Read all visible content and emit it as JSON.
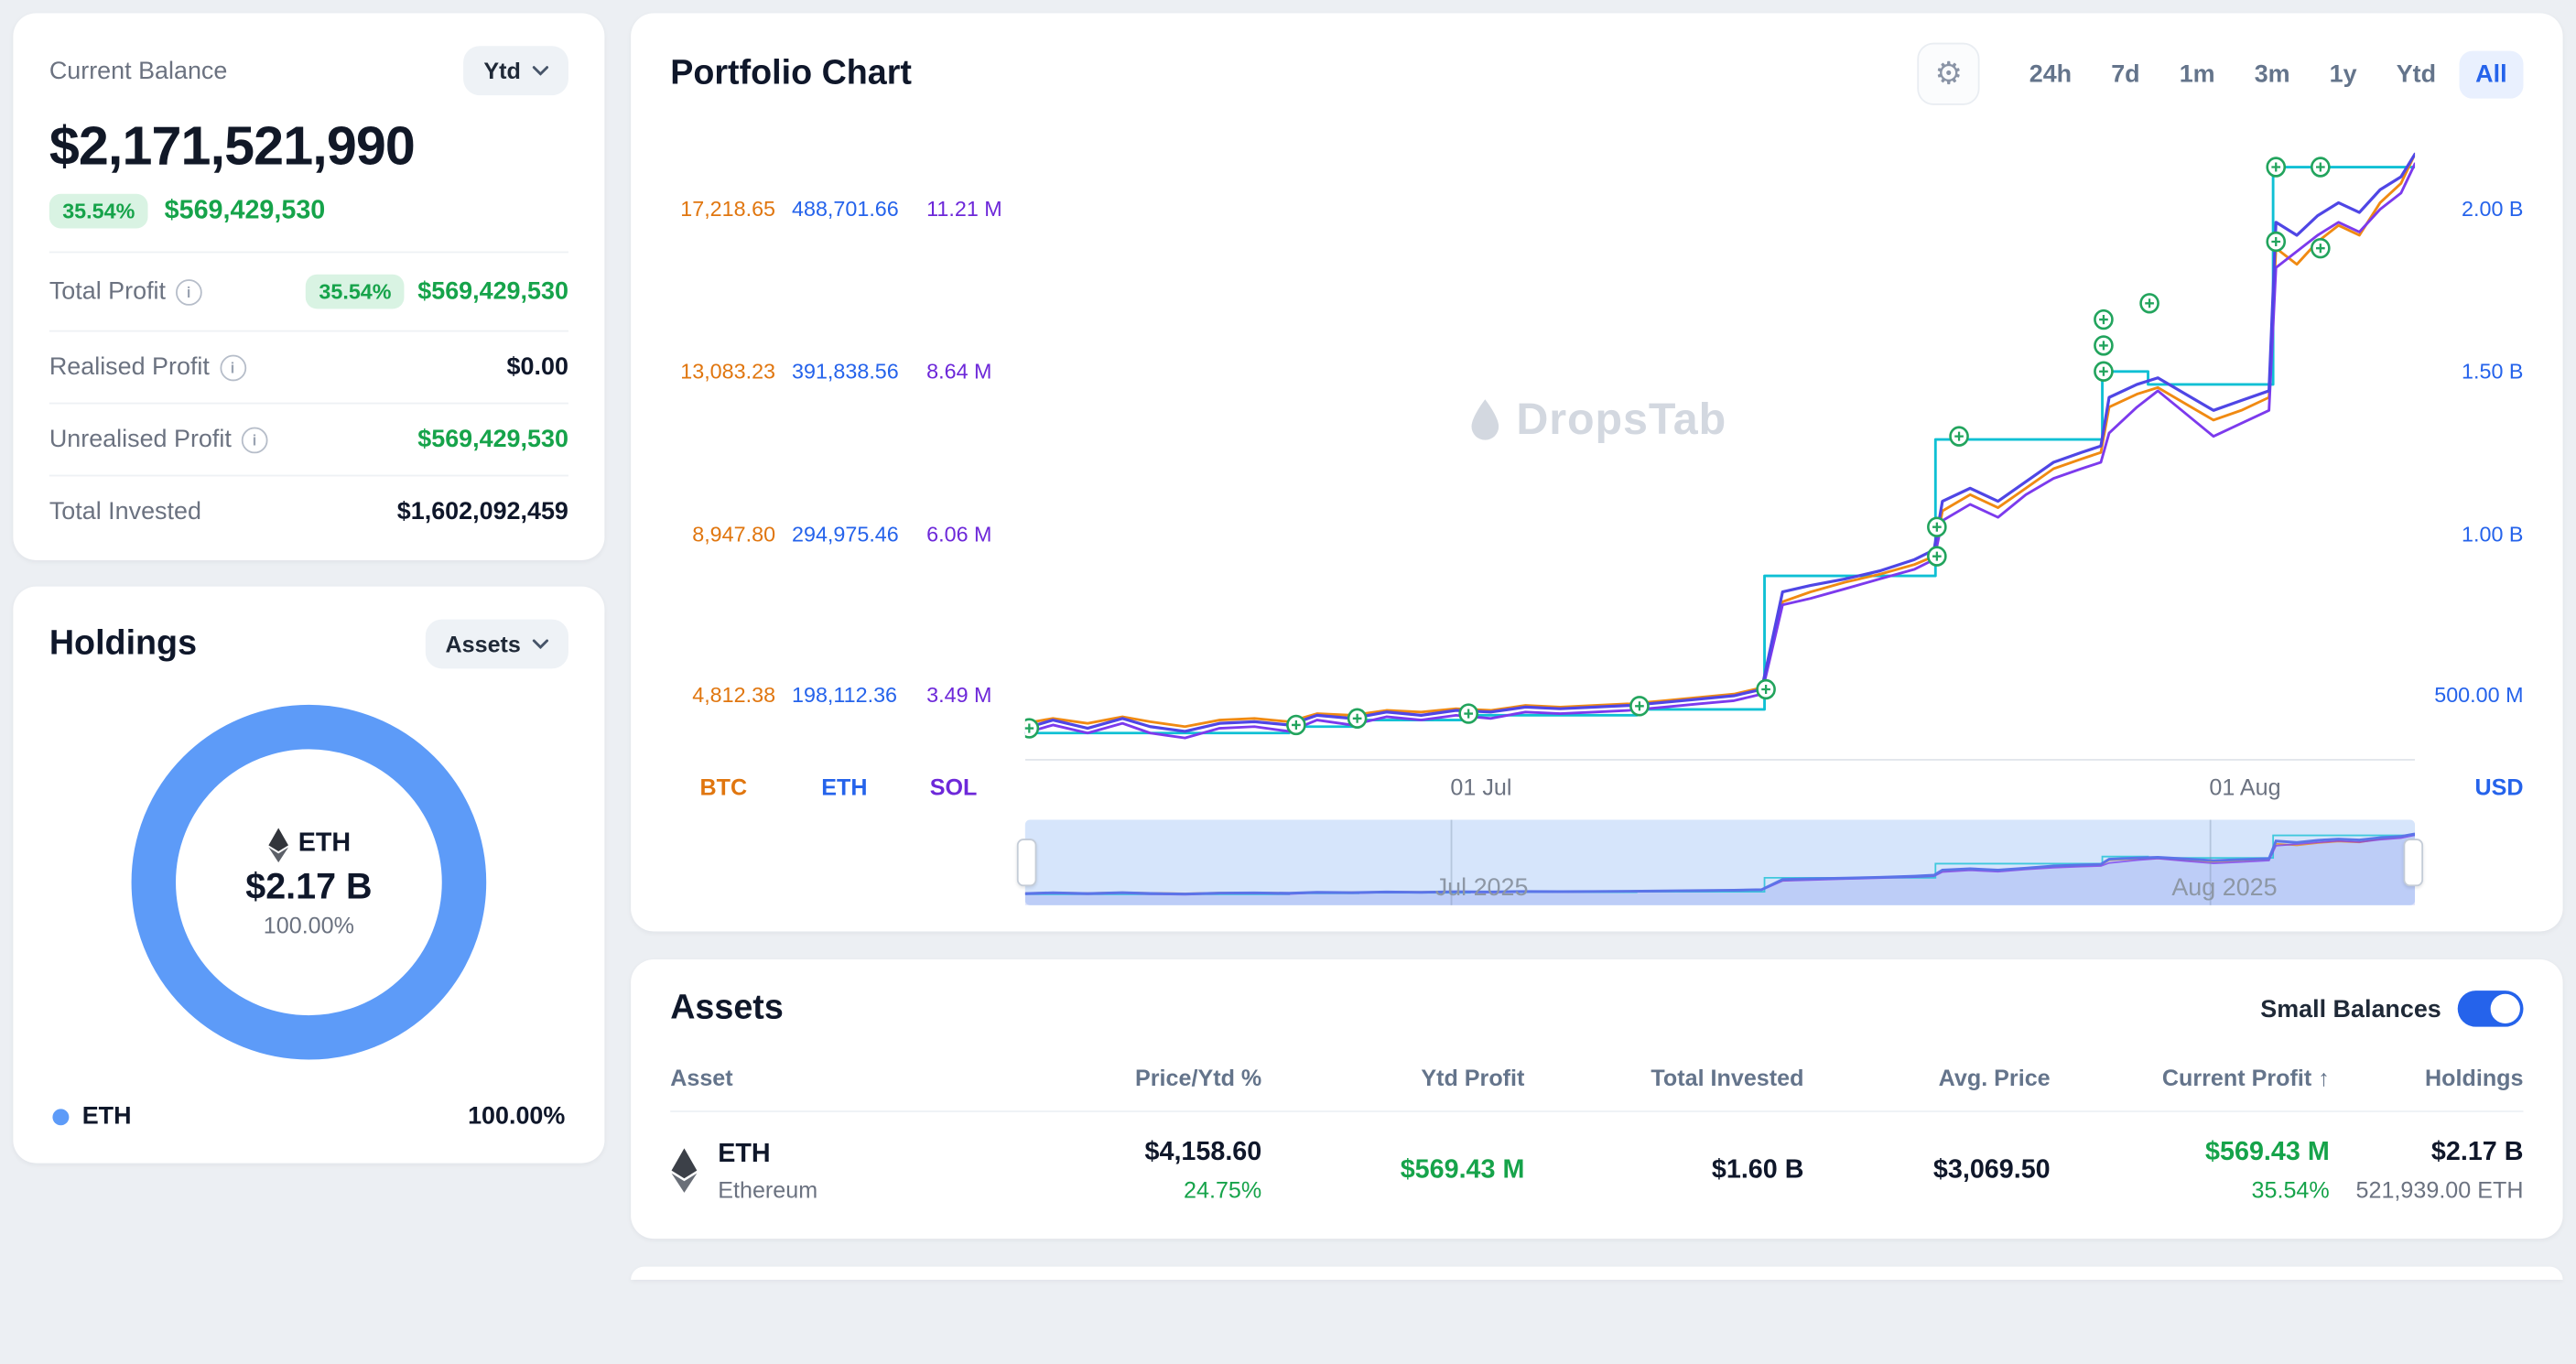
{
  "colors": {
    "accent_blue": "#2563eb",
    "donut_blue": "#5d9bf8",
    "positive_green": "#16a34a",
    "btc_orange": "#e0760f",
    "sol_purple": "#6d28d9",
    "eth_cyan": "#0fc0d4",
    "portfolio_indigo": "#4f46e5"
  },
  "balance_card": {
    "title": "Current Balance",
    "period_selector": "Ytd",
    "balance": "$2,171,521,990",
    "change_percent": "35.54%",
    "change_value": "$569,429,530",
    "rows": [
      {
        "label": "Total Profit",
        "badge": "35.54%",
        "value": "$569,429,530"
      },
      {
        "label": "Realised Profit",
        "value": "$0.00"
      },
      {
        "label": "Unrealised Profit",
        "value": "$569,429,530"
      },
      {
        "label": "Total Invested",
        "value": "$1,602,092,459"
      }
    ]
  },
  "holdings_card": {
    "title": "Holdings",
    "selector": "Assets",
    "center": {
      "symbol": "ETH",
      "value": "$2.17 B",
      "percent": "100.00%"
    },
    "legend": [
      {
        "name": "ETH",
        "percent": "100.00%"
      }
    ]
  },
  "portfolio_chart": {
    "title": "Portfolio Chart",
    "timeframes": [
      "24h",
      "7d",
      "1m",
      "3m",
      "1y",
      "Ytd",
      "All"
    ],
    "selected_timeframe": "All",
    "watermark": "DropsTab",
    "legend_left": [
      "BTC",
      "ETH",
      "SOL"
    ],
    "legend_right": "USD"
  },
  "chart_data": {
    "type": "line",
    "title": "Portfolio Chart",
    "x_ticks": [
      "01 Jul",
      "01 Aug"
    ],
    "brush_labels": [
      "Jul 2025",
      "Aug 2025"
    ],
    "legend_position": "bottom-left",
    "grid": false,
    "value_axis": {
      "min": 0.3,
      "max": 2.25,
      "unit": "USD billions (right axis)"
    },
    "axes": [
      {
        "name": "BTC",
        "color": "#e0760f",
        "ticks": [
          "17,218.65",
          "13,083.23",
          "8,947.80",
          "4,812.38"
        ]
      },
      {
        "name": "ETH",
        "color": "#2563eb",
        "ticks": [
          "488,701.66",
          "391,838.56",
          "294,975.46",
          "198,112.36"
        ]
      },
      {
        "name": "SOL",
        "color": "#6d28d9",
        "ticks": [
          "11.21 M",
          "8.64 M",
          "6.06 M",
          "3.49 M"
        ]
      },
      {
        "name": "USD",
        "color": "#2563eb",
        "side": "right",
        "ticks": [
          "2.00 B",
          "1.50 B",
          "1.00 B",
          "500.00 M"
        ]
      }
    ],
    "series": [
      {
        "name": "ETH Holdings",
        "color": "#0fc0d4",
        "type": "step",
        "width": 1.6,
        "points": [
          [
            0,
            0.385
          ],
          [
            0.19,
            0.385
          ],
          [
            0.19,
            0.405
          ],
          [
            0.24,
            0.405
          ],
          [
            0.24,
            0.425
          ],
          [
            0.32,
            0.425
          ],
          [
            0.32,
            0.44
          ],
          [
            0.44,
            0.44
          ],
          [
            0.44,
            0.458
          ],
          [
            0.532,
            0.458
          ],
          [
            0.532,
            0.87
          ],
          [
            0.655,
            0.87
          ],
          [
            0.655,
            1.29
          ],
          [
            0.775,
            1.29
          ],
          [
            0.775,
            1.5
          ],
          [
            0.808,
            1.5
          ],
          [
            0.808,
            1.46
          ],
          [
            0.898,
            1.46
          ],
          [
            0.898,
            2.13
          ],
          [
            1,
            2.13
          ]
        ]
      },
      {
        "name": "BTC",
        "color": "#f08a12",
        "width": 1.6,
        "points": [
          [
            0,
            0.415
          ],
          [
            0.02,
            0.43
          ],
          [
            0.045,
            0.415
          ],
          [
            0.07,
            0.435
          ],
          [
            0.09,
            0.42
          ],
          [
            0.115,
            0.405
          ],
          [
            0.14,
            0.425
          ],
          [
            0.165,
            0.43
          ],
          [
            0.19,
            0.42
          ],
          [
            0.21,
            0.445
          ],
          [
            0.235,
            0.44
          ],
          [
            0.26,
            0.455
          ],
          [
            0.285,
            0.45
          ],
          [
            0.31,
            0.46
          ],
          [
            0.335,
            0.455
          ],
          [
            0.36,
            0.47
          ],
          [
            0.385,
            0.465
          ],
          [
            0.41,
            0.47
          ],
          [
            0.435,
            0.475
          ],
          [
            0.46,
            0.485
          ],
          [
            0.485,
            0.495
          ],
          [
            0.51,
            0.505
          ],
          [
            0.53,
            0.525
          ],
          [
            0.545,
            0.79
          ],
          [
            0.565,
            0.82
          ],
          [
            0.59,
            0.85
          ],
          [
            0.615,
            0.875
          ],
          [
            0.64,
            0.905
          ],
          [
            0.654,
            0.93
          ],
          [
            0.66,
            1.07
          ],
          [
            0.68,
            1.12
          ],
          [
            0.7,
            1.08
          ],
          [
            0.72,
            1.14
          ],
          [
            0.74,
            1.2
          ],
          [
            0.76,
            1.23
          ],
          [
            0.774,
            1.25
          ],
          [
            0.78,
            1.39
          ],
          [
            0.8,
            1.43
          ],
          [
            0.815,
            1.45
          ],
          [
            0.835,
            1.4
          ],
          [
            0.855,
            1.35
          ],
          [
            0.875,
            1.38
          ],
          [
            0.895,
            1.42
          ],
          [
            0.9,
            1.88
          ],
          [
            0.915,
            1.83
          ],
          [
            0.93,
            1.9
          ],
          [
            0.945,
            1.95
          ],
          [
            0.96,
            1.92
          ],
          [
            0.975,
            2.02
          ],
          [
            0.99,
            2.08
          ],
          [
            1,
            2.17
          ]
        ]
      },
      {
        "name": "SOL",
        "color": "#7c3aed",
        "width": 1.6,
        "points": [
          [
            0,
            0.385
          ],
          [
            0.02,
            0.41
          ],
          [
            0.045,
            0.385
          ],
          [
            0.07,
            0.415
          ],
          [
            0.09,
            0.385
          ],
          [
            0.115,
            0.37
          ],
          [
            0.14,
            0.4
          ],
          [
            0.165,
            0.405
          ],
          [
            0.19,
            0.39
          ],
          [
            0.21,
            0.425
          ],
          [
            0.235,
            0.41
          ],
          [
            0.26,
            0.435
          ],
          [
            0.285,
            0.425
          ],
          [
            0.31,
            0.44
          ],
          [
            0.335,
            0.43
          ],
          [
            0.36,
            0.45
          ],
          [
            0.385,
            0.445
          ],
          [
            0.41,
            0.45
          ],
          [
            0.435,
            0.455
          ],
          [
            0.46,
            0.465
          ],
          [
            0.485,
            0.475
          ],
          [
            0.51,
            0.485
          ],
          [
            0.53,
            0.505
          ],
          [
            0.545,
            0.78
          ],
          [
            0.565,
            0.8
          ],
          [
            0.59,
            0.83
          ],
          [
            0.615,
            0.86
          ],
          [
            0.64,
            0.89
          ],
          [
            0.654,
            0.92
          ],
          [
            0.66,
            1.04
          ],
          [
            0.68,
            1.09
          ],
          [
            0.7,
            1.05
          ],
          [
            0.72,
            1.12
          ],
          [
            0.74,
            1.17
          ],
          [
            0.76,
            1.2
          ],
          [
            0.774,
            1.22
          ],
          [
            0.78,
            1.31
          ],
          [
            0.8,
            1.39
          ],
          [
            0.815,
            1.44
          ],
          [
            0.835,
            1.37
          ],
          [
            0.855,
            1.3
          ],
          [
            0.875,
            1.34
          ],
          [
            0.895,
            1.38
          ],
          [
            0.9,
            1.82
          ],
          [
            0.915,
            1.87
          ],
          [
            0.93,
            1.92
          ],
          [
            0.945,
            1.96
          ],
          [
            0.96,
            1.93
          ],
          [
            0.975,
            2.0
          ],
          [
            0.99,
            2.05
          ],
          [
            1,
            2.14
          ]
        ]
      },
      {
        "name": "Portfolio (USD)",
        "color": "#4f46e5",
        "width": 1.8,
        "main": true,
        "points": [
          [
            0,
            0.4
          ],
          [
            0.02,
            0.425
          ],
          [
            0.045,
            0.4
          ],
          [
            0.07,
            0.43
          ],
          [
            0.09,
            0.405
          ],
          [
            0.115,
            0.39
          ],
          [
            0.14,
            0.415
          ],
          [
            0.165,
            0.42
          ],
          [
            0.19,
            0.41
          ],
          [
            0.21,
            0.44
          ],
          [
            0.235,
            0.43
          ],
          [
            0.26,
            0.45
          ],
          [
            0.285,
            0.44
          ],
          [
            0.31,
            0.455
          ],
          [
            0.335,
            0.45
          ],
          [
            0.36,
            0.465
          ],
          [
            0.385,
            0.46
          ],
          [
            0.41,
            0.465
          ],
          [
            0.435,
            0.47
          ],
          [
            0.46,
            0.48
          ],
          [
            0.485,
            0.49
          ],
          [
            0.51,
            0.5
          ],
          [
            0.53,
            0.52
          ],
          [
            0.545,
            0.82
          ],
          [
            0.565,
            0.84
          ],
          [
            0.59,
            0.86
          ],
          [
            0.615,
            0.885
          ],
          [
            0.64,
            0.92
          ],
          [
            0.654,
            0.95
          ],
          [
            0.66,
            1.1
          ],
          [
            0.68,
            1.14
          ],
          [
            0.7,
            1.1
          ],
          [
            0.72,
            1.16
          ],
          [
            0.74,
            1.22
          ],
          [
            0.76,
            1.25
          ],
          [
            0.774,
            1.27
          ],
          [
            0.78,
            1.42
          ],
          [
            0.8,
            1.46
          ],
          [
            0.815,
            1.48
          ],
          [
            0.835,
            1.43
          ],
          [
            0.855,
            1.38
          ],
          [
            0.875,
            1.41
          ],
          [
            0.895,
            1.44
          ],
          [
            0.9,
            1.96
          ],
          [
            0.915,
            1.92
          ],
          [
            0.93,
            1.98
          ],
          [
            0.945,
            2.02
          ],
          [
            0.96,
            1.99
          ],
          [
            0.975,
            2.06
          ],
          [
            0.99,
            2.1
          ],
          [
            1,
            2.17
          ]
        ]
      }
    ],
    "transactions": [
      [
        0.003,
        0.4
      ],
      [
        0.195,
        0.41
      ],
      [
        0.239,
        0.43
      ],
      [
        0.319,
        0.445
      ],
      [
        0.442,
        0.468
      ],
      [
        0.533,
        0.52
      ],
      [
        0.656,
        0.93
      ],
      [
        0.656,
        1.02
      ],
      [
        0.672,
        1.3
      ],
      [
        0.776,
        1.5
      ],
      [
        0.776,
        1.58
      ],
      [
        0.776,
        1.66
      ],
      [
        0.809,
        1.71
      ],
      [
        0.9,
        2.13
      ],
      [
        0.9,
        1.9
      ],
      [
        0.932,
        2.13
      ],
      [
        0.932,
        1.88
      ]
    ]
  },
  "assets_card": {
    "title": "Assets",
    "small_balances_label": "Small Balances",
    "small_balances_on": true,
    "columns": [
      "Asset",
      "Price/Ytd %",
      "Ytd Profit",
      "Total Invested",
      "Avg. Price",
      "Current Profit",
      "Holdings"
    ],
    "sort_indicator": "↑",
    "rows": [
      {
        "symbol": "ETH",
        "name": "Ethereum",
        "price": "$4,158.60",
        "ytd_percent": "24.75%",
        "ytd_profit": "$569.43 M",
        "total_invested": "$1.60 B",
        "avg_price": "$3,069.50",
        "current_profit": "$569.43 M",
        "current_profit_percent": "35.54%",
        "holdings_value": "$2.17 B",
        "holdings_amount": "521,939.00 ETH"
      }
    ]
  }
}
